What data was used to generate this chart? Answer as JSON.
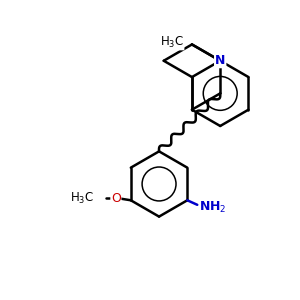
{
  "bg_color": "#ffffff",
  "bond_color": "#000000",
  "n_color": "#0000cc",
  "o_color": "#cc0000",
  "line_width": 1.8,
  "figsize": [
    3.0,
    3.0
  ],
  "dpi": 100,
  "xlim": [
    0.0,
    6.5
  ],
  "ylim": [
    0.0,
    6.5
  ]
}
